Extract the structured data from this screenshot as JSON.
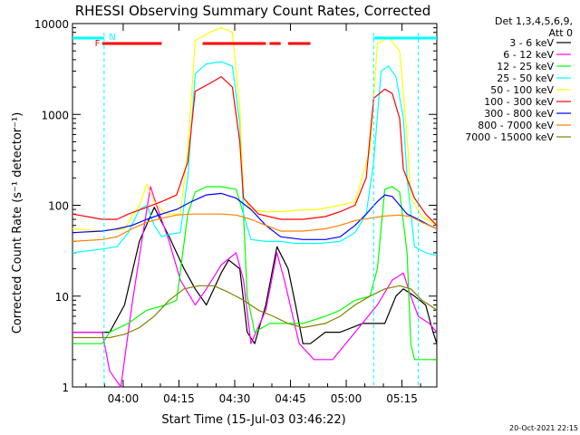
{
  "chart_data": {
    "type": "line",
    "title": "RHESSI Observing Summary Count Rates, Corrected",
    "xlabel": "Start Time (15-Jul-03 03:46:22)",
    "ylabel": "Corrected Count Rate (s⁻¹ detector⁻¹)",
    "yscale": "log",
    "ylim": [
      1,
      10000
    ],
    "xlim_minutes_after_0346": [
      0,
      98
    ],
    "x_ticks": [
      "04:00",
      "04:15",
      "04:30",
      "04:45",
      "05:00",
      "05:15"
    ],
    "y_ticks": [
      "1",
      "10",
      "100",
      "1000",
      "10000"
    ],
    "timestamp": "20-Oct-2021 22:15",
    "legend_header": [
      "Det 1,3,4,5,6,9,",
      "Att 0"
    ],
    "annotations": {
      "flare_flag": "F",
      "night_flag": "N"
    },
    "series": [
      {
        "name": "3 - 6 keV",
        "color": "#000000",
        "points": [
          [
            0,
            4
          ],
          [
            10,
            4
          ],
          [
            14,
            8
          ],
          [
            18,
            40
          ],
          [
            22,
            95
          ],
          [
            26,
            45
          ],
          [
            30,
            20
          ],
          [
            33,
            12
          ],
          [
            36,
            8
          ],
          [
            40,
            18
          ],
          [
            42,
            25
          ],
          [
            45,
            20
          ],
          [
            47,
            4
          ],
          [
            49,
            3
          ],
          [
            52,
            8
          ],
          [
            55,
            35
          ],
          [
            58,
            20
          ],
          [
            60,
            8
          ],
          [
            62,
            3
          ],
          [
            64,
            3
          ],
          [
            68,
            4
          ],
          [
            72,
            4
          ],
          [
            78,
            5
          ],
          [
            84,
            5
          ],
          [
            87,
            10
          ],
          [
            89,
            12
          ],
          [
            92,
            10
          ],
          [
            95,
            8
          ],
          [
            97,
            4
          ],
          [
            98,
            3
          ]
        ]
      },
      {
        "name": "6 - 12 keV",
        "color": "#ff00ff",
        "points": [
          [
            0,
            4
          ],
          [
            8,
            4
          ],
          [
            10,
            1.5
          ],
          [
            13,
            1
          ],
          [
            16,
            8
          ],
          [
            19,
            50
          ],
          [
            21,
            160
          ],
          [
            23,
            90
          ],
          [
            26,
            40
          ],
          [
            29,
            15
          ],
          [
            33,
            8
          ],
          [
            36,
            12
          ],
          [
            40,
            22
          ],
          [
            44,
            30
          ],
          [
            46,
            15
          ],
          [
            48,
            3
          ],
          [
            52,
            7
          ],
          [
            55,
            30
          ],
          [
            57,
            15
          ],
          [
            61,
            3
          ],
          [
            65,
            2
          ],
          [
            70,
            2
          ],
          [
            76,
            4
          ],
          [
            82,
            8
          ],
          [
            86,
            15
          ],
          [
            89,
            18
          ],
          [
            91,
            10
          ],
          [
            93,
            6
          ],
          [
            96,
            5
          ],
          [
            98,
            4
          ]
        ]
      },
      {
        "name": "12 - 25 keV",
        "color": "#00ff00",
        "points": [
          [
            0,
            3
          ],
          [
            8,
            3
          ],
          [
            10,
            4
          ],
          [
            15,
            5
          ],
          [
            20,
            7
          ],
          [
            25,
            8
          ],
          [
            28,
            9
          ],
          [
            31,
            80
          ],
          [
            33,
            140
          ],
          [
            36,
            160
          ],
          [
            40,
            160
          ],
          [
            44,
            150
          ],
          [
            46,
            80
          ],
          [
            47,
            10
          ],
          [
            49,
            4
          ],
          [
            53,
            5
          ],
          [
            58,
            5
          ],
          [
            62,
            5
          ],
          [
            68,
            6
          ],
          [
            72,
            7
          ],
          [
            76,
            9
          ],
          [
            80,
            10
          ],
          [
            82,
            20
          ],
          [
            84,
            150
          ],
          [
            86,
            160
          ],
          [
            88,
            140
          ],
          [
            90,
            30
          ],
          [
            91,
            3
          ],
          [
            92,
            2
          ],
          [
            97,
            2
          ],
          [
            98,
            2
          ]
        ]
      },
      {
        "name": "25 - 50 keV",
        "color": "#00ffff",
        "points": [
          [
            0,
            30
          ],
          [
            8,
            33
          ],
          [
            12,
            35
          ],
          [
            15,
            50
          ],
          [
            18,
            90
          ],
          [
            20,
            100
          ],
          [
            22,
            60
          ],
          [
            24,
            45
          ],
          [
            26,
            48
          ],
          [
            29,
            50
          ],
          [
            31,
            200
          ],
          [
            33,
            2800
          ],
          [
            36,
            3600
          ],
          [
            40,
            3800
          ],
          [
            43,
            3400
          ],
          [
            45,
            800
          ],
          [
            46,
            80
          ],
          [
            48,
            42
          ],
          [
            52,
            40
          ],
          [
            56,
            40
          ],
          [
            60,
            38
          ],
          [
            66,
            38
          ],
          [
            72,
            40
          ],
          [
            76,
            50
          ],
          [
            79,
            80
          ],
          [
            81,
            300
          ],
          [
            83,
            3000
          ],
          [
            85,
            3400
          ],
          [
            87,
            2600
          ],
          [
            89,
            900
          ],
          [
            90,
            200
          ],
          [
            92,
            35
          ],
          [
            95,
            30
          ],
          [
            98,
            28
          ]
        ]
      },
      {
        "name": "50 - 100 keV",
        "color": "#ffff00",
        "points": [
          [
            0,
            55
          ],
          [
            8,
            52
          ],
          [
            14,
            55
          ],
          [
            18,
            100
          ],
          [
            20,
            170
          ],
          [
            22,
            110
          ],
          [
            25,
            80
          ],
          [
            29,
            80
          ],
          [
            31,
            400
          ],
          [
            33,
            6500
          ],
          [
            37,
            8000
          ],
          [
            40,
            9000
          ],
          [
            43,
            8000
          ],
          [
            45,
            1200
          ],
          [
            46,
            120
          ],
          [
            48,
            90
          ],
          [
            52,
            85
          ],
          [
            56,
            85
          ],
          [
            60,
            88
          ],
          [
            66,
            90
          ],
          [
            72,
            100
          ],
          [
            76,
            110
          ],
          [
            80,
            400
          ],
          [
            82,
            6000
          ],
          [
            85,
            7000
          ],
          [
            88,
            5000
          ],
          [
            90,
            600
          ],
          [
            91,
            120
          ],
          [
            94,
            75
          ],
          [
            98,
            60
          ]
        ]
      },
      {
        "name": "100 - 300 keV",
        "color": "#ff0000",
        "points": [
          [
            0,
            80
          ],
          [
            8,
            70
          ],
          [
            12,
            70
          ],
          [
            15,
            80
          ],
          [
            20,
            95
          ],
          [
            24,
            110
          ],
          [
            28,
            130
          ],
          [
            31,
            300
          ],
          [
            33,
            1800
          ],
          [
            37,
            2200
          ],
          [
            40,
            2600
          ],
          [
            43,
            2000
          ],
          [
            45,
            500
          ],
          [
            46,
            120
          ],
          [
            50,
            80
          ],
          [
            56,
            70
          ],
          [
            62,
            70
          ],
          [
            68,
            75
          ],
          [
            72,
            85
          ],
          [
            76,
            100
          ],
          [
            79,
            200
          ],
          [
            81,
            1500
          ],
          [
            84,
            1900
          ],
          [
            86,
            1700
          ],
          [
            88,
            900
          ],
          [
            89,
            250
          ],
          [
            92,
            120
          ],
          [
            95,
            80
          ],
          [
            98,
            60
          ]
        ]
      },
      {
        "name": "300 - 800 keV",
        "color": "#0000ff",
        "points": [
          [
            0,
            50
          ],
          [
            8,
            52
          ],
          [
            12,
            55
          ],
          [
            16,
            60
          ],
          [
            20,
            70
          ],
          [
            24,
            80
          ],
          [
            28,
            90
          ],
          [
            32,
            110
          ],
          [
            36,
            130
          ],
          [
            40,
            135
          ],
          [
            44,
            120
          ],
          [
            48,
            90
          ],
          [
            52,
            60
          ],
          [
            56,
            45
          ],
          [
            62,
            42
          ],
          [
            68,
            42
          ],
          [
            72,
            45
          ],
          [
            76,
            60
          ],
          [
            79,
            80
          ],
          [
            82,
            110
          ],
          [
            84,
            130
          ],
          [
            86,
            125
          ],
          [
            88,
            100
          ],
          [
            90,
            80
          ],
          [
            93,
            70
          ],
          [
            96,
            60
          ],
          [
            98,
            55
          ]
        ]
      },
      {
        "name": "800 - 7000 keV",
        "color": "#ff8000",
        "points": [
          [
            0,
            40
          ],
          [
            8,
            42
          ],
          [
            12,
            45
          ],
          [
            16,
            55
          ],
          [
            20,
            65
          ],
          [
            24,
            72
          ],
          [
            28,
            78
          ],
          [
            32,
            80
          ],
          [
            36,
            80
          ],
          [
            40,
            80
          ],
          [
            44,
            78
          ],
          [
            48,
            70
          ],
          [
            52,
            60
          ],
          [
            56,
            52
          ],
          [
            62,
            52
          ],
          [
            68,
            55
          ],
          [
            72,
            60
          ],
          [
            76,
            68
          ],
          [
            80,
            72
          ],
          [
            84,
            76
          ],
          [
            88,
            78
          ],
          [
            91,
            75
          ],
          [
            94,
            65
          ],
          [
            98,
            55
          ]
        ]
      },
      {
        "name": "7000 - 15000 keV",
        "color": "#808000",
        "points": [
          [
            0,
            3.5
          ],
          [
            6,
            3.5
          ],
          [
            10,
            3.5
          ],
          [
            14,
            3.8
          ],
          [
            18,
            4.5
          ],
          [
            22,
            6
          ],
          [
            26,
            9
          ],
          [
            30,
            12
          ],
          [
            34,
            13
          ],
          [
            38,
            13
          ],
          [
            42,
            11
          ],
          [
            46,
            9
          ],
          [
            50,
            7
          ],
          [
            54,
            6
          ],
          [
            58,
            5
          ],
          [
            62,
            4.5
          ],
          [
            68,
            5
          ],
          [
            72,
            6
          ],
          [
            76,
            8
          ],
          [
            80,
            10
          ],
          [
            84,
            12
          ],
          [
            88,
            13
          ],
          [
            91,
            12
          ],
          [
            94,
            9
          ],
          [
            96,
            8
          ],
          [
            98,
            7
          ]
        ]
      }
    ]
  }
}
